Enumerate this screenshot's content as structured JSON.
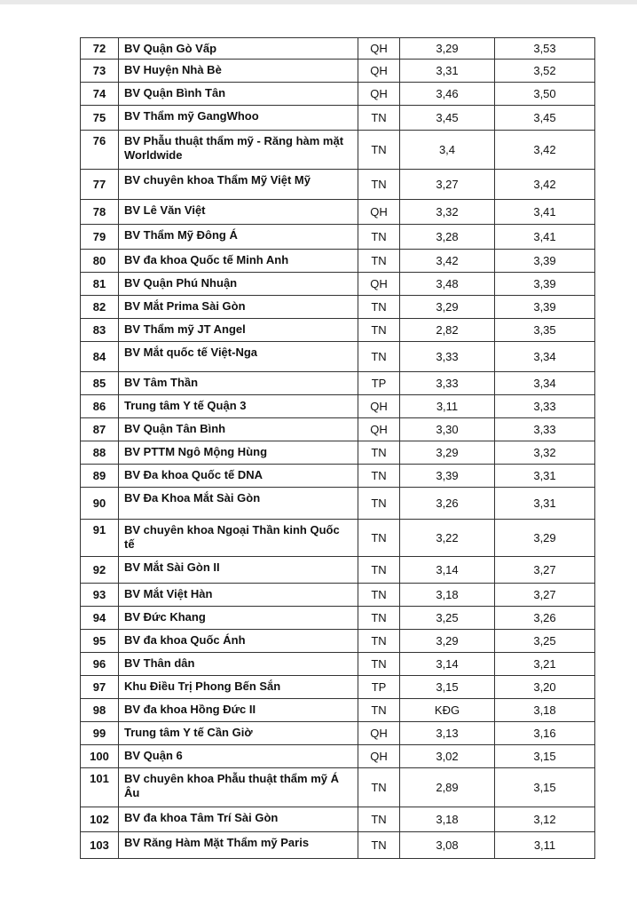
{
  "rows": [
    {
      "no": "72",
      "name": "BV Quận Gò Vấp",
      "type": "QH",
      "score1": "3,29",
      "score2": "3,53"
    },
    {
      "no": "73",
      "name": "BV Huyện Nhà Bè",
      "type": "QH",
      "score1": "3,31",
      "score2": "3,52"
    },
    {
      "no": "74",
      "name": "BV Quận Bình Tân",
      "type": "QH",
      "score1": "3,46",
      "score2": "3,50"
    },
    {
      "no": "75",
      "name": "BV Thẩm mỹ GangWhoo",
      "type": "TN",
      "score1": "3,45",
      "score2": "3,45"
    },
    {
      "no": "76",
      "name": "BV Phẫu thuật thẩm mỹ - Răng hàm mặt Worldwide",
      "type": "TN",
      "score1": "3,4",
      "score2": "3,42"
    },
    {
      "no": "77",
      "name": "BV chuyên khoa Thẩm Mỹ Việt Mỹ",
      "type": "TN",
      "score1": "3,27",
      "score2": "3,42"
    },
    {
      "no": "78",
      "name": "BV Lê Văn Việt",
      "type": "QH",
      "score1": "3,32",
      "score2": "3,41"
    },
    {
      "no": "79",
      "name": "BV Thẩm Mỹ Đông Á",
      "type": "TN",
      "score1": "3,28",
      "score2": "3,41"
    },
    {
      "no": "80",
      "name": "BV đa khoa Quốc tế Minh Anh",
      "type": "TN",
      "score1": "3,42",
      "score2": "3,39"
    },
    {
      "no": "81",
      "name": "BV Quận Phú Nhuận",
      "type": "QH",
      "score1": "3,48",
      "score2": "3,39"
    },
    {
      "no": "82",
      "name": "BV Mắt Prima Sài Gòn",
      "type": "TN",
      "score1": "3,29",
      "score2": "3,39"
    },
    {
      "no": "83",
      "name": "BV Thẩm mỹ JT Angel",
      "type": "TN",
      "score1": "2,82",
      "score2": "3,35"
    },
    {
      "no": "84",
      "name": "BV Mắt quốc tế Việt-Nga",
      "type": "TN",
      "score1": "3,33",
      "score2": "3,34"
    },
    {
      "no": "85",
      "name": "BV Tâm Thần",
      "type": "TP",
      "score1": "3,33",
      "score2": "3,34"
    },
    {
      "no": "86",
      "name": "Trung tâm Y tế Quận 3",
      "type": "QH",
      "score1": "3,11",
      "score2": "3,33"
    },
    {
      "no": "87",
      "name": "BV Quận Tân Bình",
      "type": "QH",
      "score1": "3,30",
      "score2": "3,33"
    },
    {
      "no": "88",
      "name": "BV PTTM Ngô Mộng Hùng",
      "type": "TN",
      "score1": "3,29",
      "score2": "3,32"
    },
    {
      "no": "89",
      "name": "BV Đa khoa Quốc tế DNA",
      "type": "TN",
      "score1": "3,39",
      "score2": "3,31"
    },
    {
      "no": "90",
      "name": "BV Đa Khoa Mắt Sài Gòn",
      "type": "TN",
      "score1": "3,26",
      "score2": "3,31"
    },
    {
      "no": "91",
      "name": "BV chuyên khoa Ngoại Thần kinh Quốc tế",
      "type": "TN",
      "score1": "3,22",
      "score2": "3,29"
    },
    {
      "no": "92",
      "name": "BV Mắt Sài Gòn II",
      "type": "TN",
      "score1": "3,14",
      "score2": "3,27"
    },
    {
      "no": "93",
      "name": "BV Mắt Việt Hàn",
      "type": "TN",
      "score1": "3,18",
      "score2": "3,27"
    },
    {
      "no": "94",
      "name": "BV Đức Khang",
      "type": "TN",
      "score1": "3,25",
      "score2": "3,26"
    },
    {
      "no": "95",
      "name": "BV đa khoa Quốc Ánh",
      "type": "TN",
      "score1": "3,29",
      "score2": "3,25"
    },
    {
      "no": "96",
      "name": "BV Thân dân",
      "type": "TN",
      "score1": "3,14",
      "score2": "3,21"
    },
    {
      "no": "97",
      "name": "Khu Điều Trị Phong Bến Sắn",
      "type": "TP",
      "score1": "3,15",
      "score2": "3,20"
    },
    {
      "no": "98",
      "name": "BV đa khoa Hồng Đức II",
      "type": "TN",
      "score1": "KĐG",
      "score2": "3,18"
    },
    {
      "no": "99",
      "name": "Trung tâm Y tế Cần Giờ",
      "type": "QH",
      "score1": "3,13",
      "score2": "3,16"
    },
    {
      "no": "100",
      "name": "BV Quận 6",
      "type": "QH",
      "score1": "3,02",
      "score2": "3,15"
    },
    {
      "no": "101",
      "name": "BV chuyên khoa Phẫu thuật thẩm mỹ Á Âu",
      "type": "TN",
      "score1": "2,89",
      "score2": "3,15"
    },
    {
      "no": "102",
      "name": "BV đa khoa Tâm Trí Sài Gòn",
      "type": "TN",
      "score1": "3,18",
      "score2": "3,12"
    },
    {
      "no": "103",
      "name": "BV Răng Hàm Mặt Thẩm mỹ Paris",
      "type": "TN",
      "score1": "3,08",
      "score2": "3,11"
    }
  ]
}
